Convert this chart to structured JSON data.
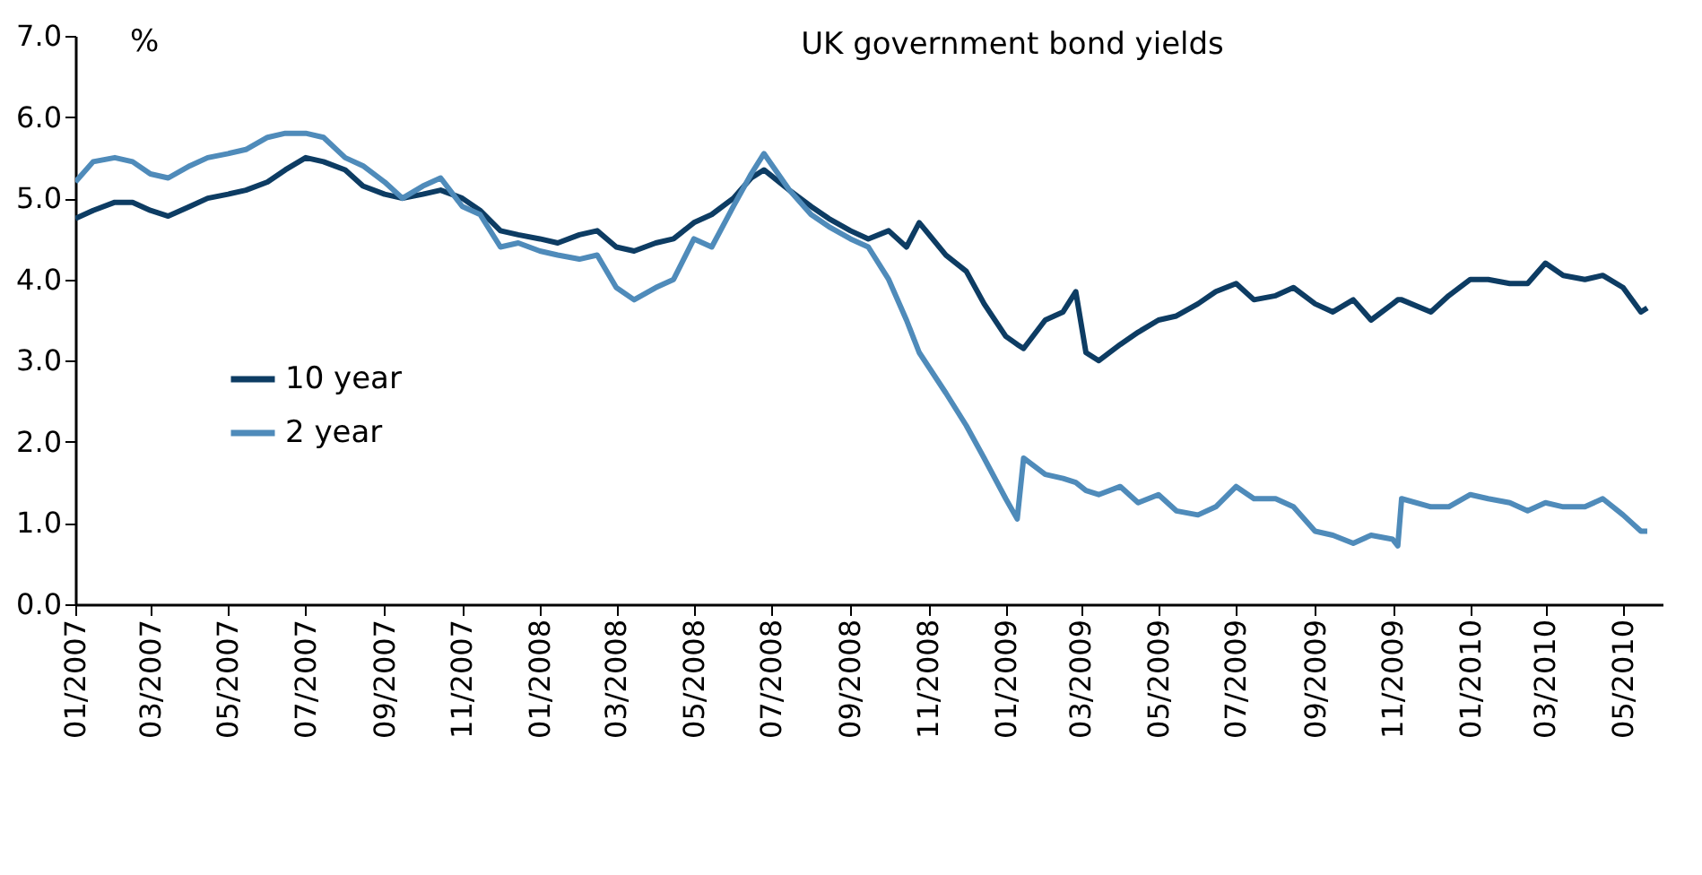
{
  "chart_data": {
    "type": "line",
    "title": "UK government bond yields",
    "ylabel": "%",
    "xlim": [
      "2007-01-01",
      "2010-06-01"
    ],
    "xticks": [
      {
        "value": "2007-01",
        "label": "01/2007"
      },
      {
        "value": "2007-03",
        "label": "03/2007"
      },
      {
        "value": "2007-05",
        "label": "05/2007"
      },
      {
        "value": "2007-07",
        "label": "07/2007"
      },
      {
        "value": "2007-09",
        "label": "09/2007"
      },
      {
        "value": "2007-11",
        "label": "11/2007"
      },
      {
        "value": "2008-01",
        "label": "01/2008"
      },
      {
        "value": "2008-03",
        "label": "03/2008"
      },
      {
        "value": "2008-05",
        "label": "05/2008"
      },
      {
        "value": "2008-07",
        "label": "07/2008"
      },
      {
        "value": "2008-09",
        "label": "09/2008"
      },
      {
        "value": "2008-11",
        "label": "11/2008"
      },
      {
        "value": "2009-01",
        "label": "01/2009"
      },
      {
        "value": "2009-03",
        "label": "03/2009"
      },
      {
        "value": "2009-05",
        "label": "05/2009"
      },
      {
        "value": "2009-07",
        "label": "07/2009"
      },
      {
        "value": "2009-09",
        "label": "09/2009"
      },
      {
        "value": "2009-11",
        "label": "11/2009"
      },
      {
        "value": "2010-01",
        "label": "01/2010"
      },
      {
        "value": "2010-03",
        "label": "03/2010"
      },
      {
        "value": "2010-05",
        "label": "05/2010"
      }
    ],
    "ylim": [
      0,
      7
    ],
    "yticks": [
      {
        "value": 0,
        "label": "0.0"
      },
      {
        "value": 1,
        "label": "1.0"
      },
      {
        "value": 2,
        "label": "2.0"
      },
      {
        "value": 3,
        "label": "3.0"
      },
      {
        "value": 4,
        "label": "4.0"
      },
      {
        "value": 5,
        "label": "5.0"
      },
      {
        "value": 6,
        "label": "6.0"
      },
      {
        "value": 7,
        "label": "7.0"
      }
    ],
    "grid": false,
    "legend": "left",
    "marker": "none",
    "line_style": "solid",
    "x": [
      "2007-01-01",
      "2007-01-15",
      "2007-02-01",
      "2007-02-15",
      "2007-03-01",
      "2007-03-15",
      "2007-04-01",
      "2007-04-15",
      "2007-05-01",
      "2007-05-15",
      "2007-06-01",
      "2007-06-15",
      "2007-07-01",
      "2007-07-15",
      "2007-08-01",
      "2007-08-15",
      "2007-09-01",
      "2007-09-15",
      "2007-10-01",
      "2007-10-15",
      "2007-11-01",
      "2007-11-15",
      "2007-12-01",
      "2007-12-15",
      "2008-01-01",
      "2008-01-15",
      "2008-02-01",
      "2008-02-15",
      "2008-03-01",
      "2008-03-15",
      "2008-04-01",
      "2008-04-15",
      "2008-05-01",
      "2008-05-15",
      "2008-06-01",
      "2008-06-15",
      "2008-06-25",
      "2008-07-15",
      "2008-08-01",
      "2008-08-15",
      "2008-09-01",
      "2008-09-15",
      "2008-10-01",
      "2008-10-15",
      "2008-10-25",
      "2008-11-15",
      "2008-12-01",
      "2008-12-15",
      "2009-01-01",
      "2009-01-10",
      "2009-01-15",
      "2009-02-01",
      "2009-02-15",
      "2009-02-25",
      "2009-03-05",
      "2009-03-15",
      "2009-04-01",
      "2009-04-15",
      "2009-05-01",
      "2009-05-15",
      "2009-06-01",
      "2009-06-15",
      "2009-07-01",
      "2009-07-15",
      "2009-08-01",
      "2009-08-15",
      "2009-09-01",
      "2009-09-15",
      "2009-10-01",
      "2009-10-15",
      "2009-11-01",
      "2009-11-05",
      "2009-11-08",
      "2009-12-01",
      "2009-12-15",
      "2010-01-01",
      "2010-01-15",
      "2010-02-01",
      "2010-02-15",
      "2010-03-01",
      "2010-03-15",
      "2010-04-01",
      "2010-04-15",
      "2010-05-01",
      "2010-05-15",
      "2010-05-20"
    ],
    "series": [
      {
        "name": "10 year",
        "color": "#0d3c63",
        "values": [
          4.75,
          4.85,
          4.95,
          4.95,
          4.85,
          4.78,
          4.9,
          5.0,
          5.05,
          5.1,
          5.2,
          5.35,
          5.5,
          5.45,
          5.35,
          5.15,
          5.05,
          5.0,
          5.05,
          5.1,
          5.0,
          4.85,
          4.6,
          4.55,
          4.5,
          4.45,
          4.55,
          4.6,
          4.4,
          4.35,
          4.45,
          4.5,
          4.7,
          4.8,
          5.0,
          5.25,
          5.35,
          5.1,
          4.9,
          4.75,
          4.6,
          4.5,
          4.6,
          4.4,
          4.7,
          4.3,
          4.1,
          3.7,
          3.3,
          3.2,
          3.15,
          3.5,
          3.6,
          3.85,
          3.1,
          3.0,
          3.2,
          3.35,
          3.5,
          3.55,
          3.7,
          3.85,
          3.95,
          3.75,
          3.8,
          3.9,
          3.7,
          3.6,
          3.75,
          3.5,
          3.7,
          3.75,
          3.75,
          3.6,
          3.8,
          4.0,
          4.0,
          3.95,
          3.95,
          4.2,
          4.05,
          4.0,
          4.05,
          3.9,
          3.6,
          3.65
        ]
      },
      {
        "name": "2 year",
        "color": "#4f8bba",
        "values": [
          5.2,
          5.45,
          5.5,
          5.45,
          5.3,
          5.25,
          5.4,
          5.5,
          5.55,
          5.6,
          5.75,
          5.8,
          5.8,
          5.75,
          5.5,
          5.4,
          5.2,
          5.0,
          5.15,
          5.25,
          4.9,
          4.8,
          4.4,
          4.45,
          4.35,
          4.3,
          4.25,
          4.3,
          3.9,
          3.75,
          3.9,
          4.0,
          4.5,
          4.4,
          4.9,
          5.3,
          5.55,
          5.1,
          4.8,
          4.65,
          4.5,
          4.4,
          4.0,
          3.5,
          3.1,
          2.6,
          2.2,
          1.8,
          1.3,
          1.05,
          1.8,
          1.6,
          1.55,
          1.5,
          1.4,
          1.35,
          1.45,
          1.25,
          1.35,
          1.15,
          1.1,
          1.2,
          1.45,
          1.3,
          1.3,
          1.2,
          0.9,
          0.85,
          0.75,
          0.85,
          0.8,
          0.72,
          1.3,
          1.2,
          1.2,
          1.35,
          1.3,
          1.25,
          1.15,
          1.25,
          1.2,
          1.2,
          1.3,
          1.1,
          0.9,
          0.9
        ]
      }
    ]
  }
}
